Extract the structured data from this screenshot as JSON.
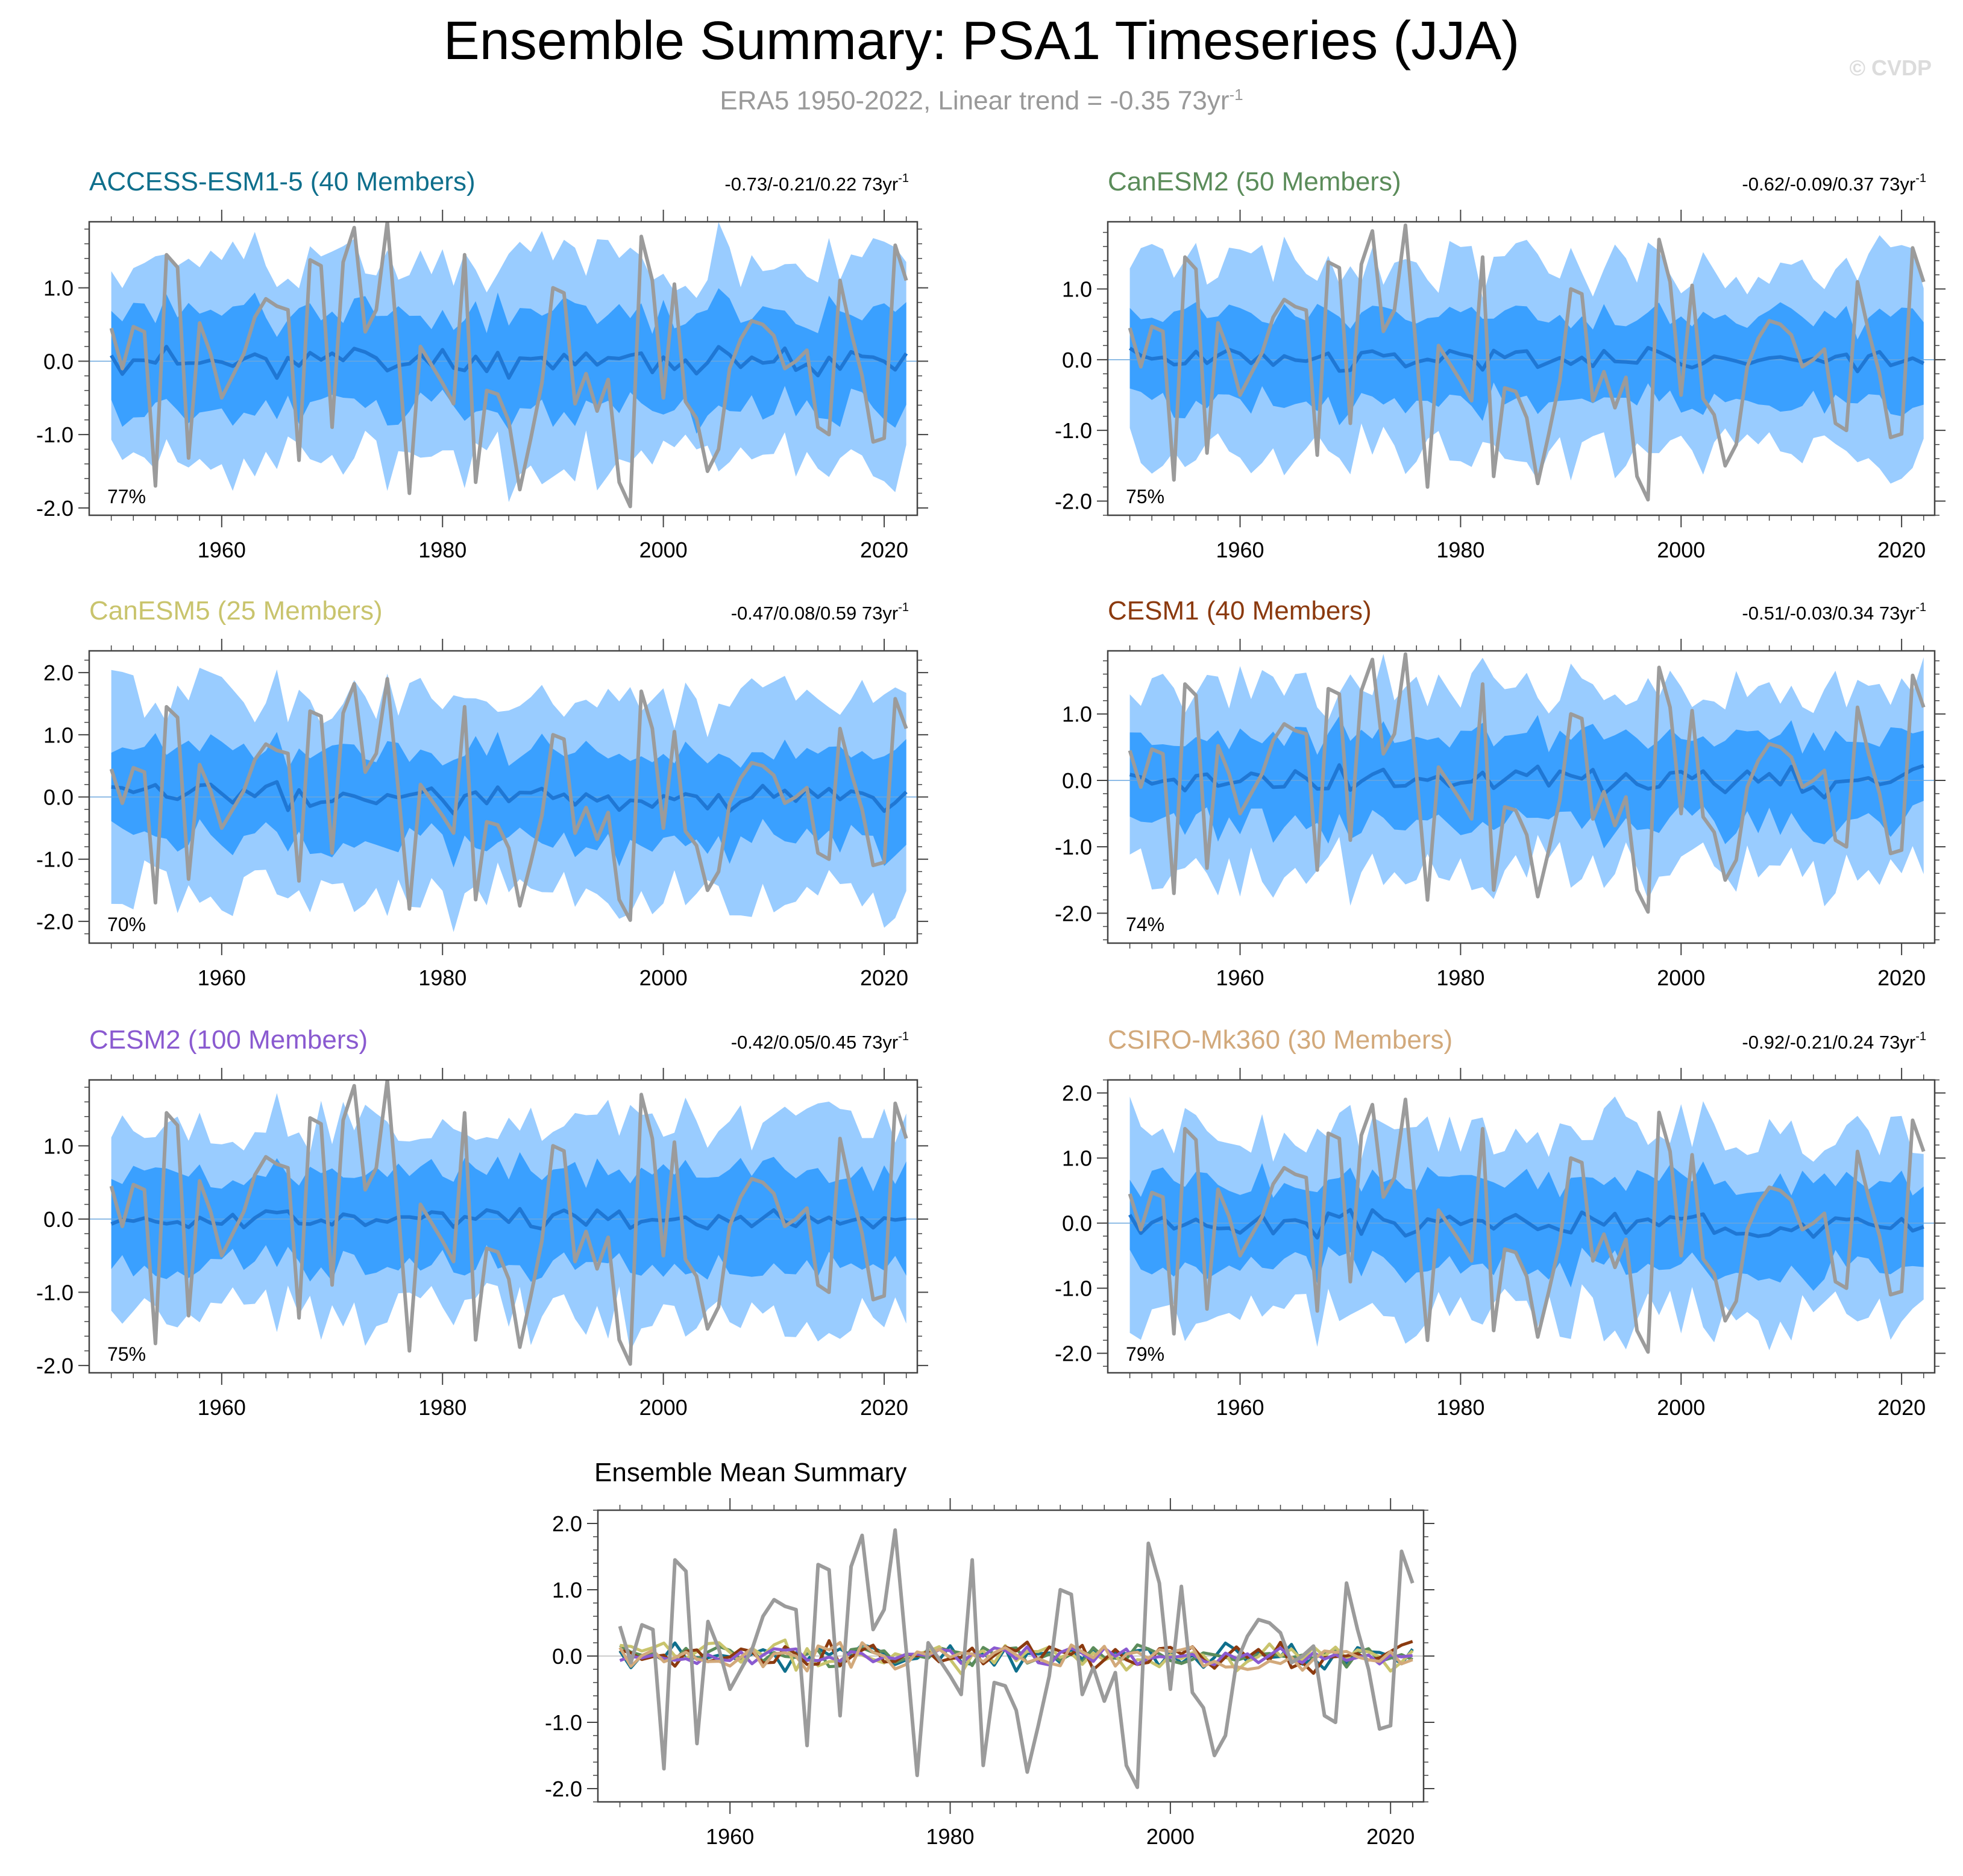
{
  "title": "Ensemble Summary: PSA1 Timeseries (JJA)",
  "subtitle": {
    "text": "ERA5 1950-2022, Linear trend = -0.35 73yr",
    "sup": "-1"
  },
  "watermark": "© CVDP",
  "colors": {
    "obs": "#9b9b9b",
    "band_outer": "#99ccff",
    "band_inner": "#3aa0ff",
    "ens_mean": "#1f77d4",
    "frame": "#444444"
  },
  "chart_data": [
    {
      "type": "line",
      "title": "ACCESS-ESM1-5 (40 Members)",
      "title_color": "#0f6f8c",
      "trend_text": "-0.73/-0.21/0.22 73yr",
      "trend_sup": "-1",
      "percent_label": "77%",
      "xlim": [
        1948,
        2023
      ],
      "ylim": [
        -2.1,
        1.9
      ],
      "yticks": [
        {
          "v": 1.0,
          "label": "1.0"
        },
        {
          "v": 0.0,
          "label": "0.0"
        },
        {
          "v": -1.0,
          "label": "-1.0"
        },
        {
          "v": -2.0,
          "label": "-2.0"
        }
      ],
      "xticks": [
        {
          "v": 1960,
          "label": "1960"
        },
        {
          "v": 1980,
          "label": "1980"
        },
        {
          "v": 2000,
          "label": "2000"
        },
        {
          "v": 2020,
          "label": "2020"
        }
      ],
      "seed": 11,
      "mean_scale": 0.15,
      "inner": 0.65,
      "outer": 1.35
    },
    {
      "type": "line",
      "title": "CanESM2 (50 Members)",
      "title_color": "#5b8c5a",
      "trend_text": "-0.62/-0.09/0.37 73yr",
      "trend_sup": "-1",
      "percent_label": "75%",
      "xlim": [
        1948,
        2023
      ],
      "ylim": [
        -2.2,
        1.95
      ],
      "yticks": [
        {
          "v": 1.0,
          "label": "1.0"
        },
        {
          "v": 0.0,
          "label": "0.0"
        },
        {
          "v": -1.0,
          "label": "-1.0"
        },
        {
          "v": -2.0,
          "label": "-2.0"
        }
      ],
      "xticks": [
        {
          "v": 1960,
          "label": "1960"
        },
        {
          "v": 1980,
          "label": "1980"
        },
        {
          "v": 2000,
          "label": "2000"
        },
        {
          "v": 2020,
          "label": "2020"
        }
      ],
      "seed": 23,
      "mean_scale": 0.12,
      "inner": 0.6,
      "outer": 1.3
    },
    {
      "type": "line",
      "title": "CanESM5 (25 Members)",
      "title_color": "#c9c46d",
      "trend_text": "-0.47/0.08/0.59 73yr",
      "trend_sup": "-1",
      "percent_label": "70%",
      "xlim": [
        1948,
        2023
      ],
      "ylim": [
        -2.35,
        2.35
      ],
      "yticks": [
        {
          "v": 2.0,
          "label": "2.0"
        },
        {
          "v": 1.0,
          "label": "1.0"
        },
        {
          "v": 0.0,
          "label": "0.0"
        },
        {
          "v": -1.0,
          "label": "-1.0"
        },
        {
          "v": -2.0,
          "label": "-2.0"
        }
      ],
      "xticks": [
        {
          "v": 1960,
          "label": "1960"
        },
        {
          "v": 1980,
          "label": "1980"
        },
        {
          "v": 2000,
          "label": "2000"
        },
        {
          "v": 2020,
          "label": "2020"
        }
      ],
      "seed": 37,
      "mean_scale": 0.17,
      "inner": 0.7,
      "outer": 1.5
    },
    {
      "type": "line",
      "title": "CESM1 (40 Members)",
      "title_color": "#8b3a0f",
      "trend_text": "-0.51/-0.03/0.34 73yr",
      "trend_sup": "-1",
      "percent_label": "74%",
      "xlim": [
        1948,
        2023
      ],
      "ylim": [
        -2.45,
        1.95
      ],
      "yticks": [
        {
          "v": 1.0,
          "label": "1.0"
        },
        {
          "v": 0.0,
          "label": "0.0"
        },
        {
          "v": -1.0,
          "label": "-1.0"
        },
        {
          "v": -2.0,
          "label": "-2.0"
        }
      ],
      "xticks": [
        {
          "v": 1960,
          "label": "1960"
        },
        {
          "v": 1980,
          "label": "1980"
        },
        {
          "v": 2000,
          "label": "2000"
        },
        {
          "v": 2020,
          "label": "2020"
        }
      ],
      "seed": 41,
      "mean_scale": 0.18,
      "inner": 0.65,
      "outer": 1.35
    },
    {
      "type": "line",
      "title": "CESM2 (100 Members)",
      "title_color": "#8a5ad0",
      "trend_text": "-0.42/0.05/0.45 73yr",
      "trend_sup": "-1",
      "percent_label": "75%",
      "xlim": [
        1948,
        2023
      ],
      "ylim": [
        -2.1,
        1.9
      ],
      "yticks": [
        {
          "v": 1.0,
          "label": "1.0"
        },
        {
          "v": 0.0,
          "label": "0.0"
        },
        {
          "v": -1.0,
          "label": "-1.0"
        },
        {
          "v": -2.0,
          "label": "-2.0"
        }
      ],
      "xticks": [
        {
          "v": 1960,
          "label": "1960"
        },
        {
          "v": 1980,
          "label": "1980"
        },
        {
          "v": 2000,
          "label": "2000"
        },
        {
          "v": 2020,
          "label": "2020"
        }
      ],
      "seed": 53,
      "mean_scale": 0.1,
      "inner": 0.62,
      "outer": 1.3
    },
    {
      "type": "line",
      "title": "CSIRO-Mk360 (30 Members)",
      "title_color": "#d2a97b",
      "trend_text": "-0.92/-0.21/0.24 73yr",
      "trend_sup": "-1",
      "percent_label": "79%",
      "xlim": [
        1948,
        2023
      ],
      "ylim": [
        -2.3,
        2.2
      ],
      "yticks": [
        {
          "v": 2.0,
          "label": "2.0"
        },
        {
          "v": 1.0,
          "label": "1.0"
        },
        {
          "v": 0.0,
          "label": "0.0"
        },
        {
          "v": -1.0,
          "label": "-1.0"
        },
        {
          "v": -2.0,
          "label": "-2.0"
        }
      ],
      "xticks": [
        {
          "v": 1960,
          "label": "1960"
        },
        {
          "v": 1980,
          "label": "1980"
        },
        {
          "v": 2000,
          "label": "2000"
        },
        {
          "v": 2020,
          "label": "2020"
        }
      ],
      "seed": 67,
      "mean_scale": 0.14,
      "inner": 0.65,
      "outer": 1.4
    },
    {
      "type": "line",
      "title": "Ensemble Mean Summary",
      "title_color": "#000000",
      "xlim": [
        1948,
        2023
      ],
      "ylim": [
        -2.2,
        2.2
      ],
      "yticks": [
        {
          "v": 2.0,
          "label": "2.0"
        },
        {
          "v": 1.0,
          "label": "1.0"
        },
        {
          "v": 0.0,
          "label": "0.0"
        },
        {
          "v": -1.0,
          "label": "-1.0"
        },
        {
          "v": -2.0,
          "label": "-2.0"
        }
      ],
      "xticks": [
        {
          "v": 1960,
          "label": "1960"
        },
        {
          "v": 1980,
          "label": "1980"
        },
        {
          "v": 2000,
          "label": "2000"
        },
        {
          "v": 2020,
          "label": "2020"
        }
      ],
      "series_colors": [
        "#0f6f8c",
        "#5b8c5a",
        "#c9c46d",
        "#8b3a0f",
        "#8a5ad0",
        "#d2a97b"
      ],
      "series_seeds": [
        11,
        23,
        37,
        41,
        53,
        67
      ],
      "series_scales": [
        0.15,
        0.12,
        0.17,
        0.18,
        0.1,
        0.14
      ]
    }
  ],
  "obs_series": {
    "name": "ERA5 PSA1 (JJA)",
    "x_start": 1950,
    "values": [
      0.45,
      -0.1,
      0.47,
      0.4,
      -1.7,
      1.45,
      1.28,
      -1.32,
      0.52,
      0.1,
      -0.5,
      -0.2,
      0.1,
      0.6,
      0.85,
      0.75,
      0.7,
      -1.35,
      1.38,
      1.3,
      -0.9,
      1.35,
      1.82,
      0.4,
      0.7,
      1.9,
      0.1,
      -1.8,
      0.2,
      -0.05,
      -0.3,
      -0.58,
      1.45,
      -1.65,
      -0.4,
      -0.45,
      -0.82,
      -1.75,
      -1.05,
      -0.3,
      1.0,
      0.93,
      -0.58,
      -0.17,
      -0.68,
      -0.25,
      -1.65,
      -1.98,
      1.7,
      1.1,
      -0.5,
      1.05,
      -0.55,
      -0.78,
      -1.5,
      -1.2,
      -0.1,
      0.3,
      0.55,
      0.5,
      0.35,
      -0.1,
      0.0,
      0.15,
      -0.9,
      -1.0,
      1.1,
      0.4,
      -0.2,
      -1.1,
      -1.05,
      1.58,
      1.1
    ]
  }
}
